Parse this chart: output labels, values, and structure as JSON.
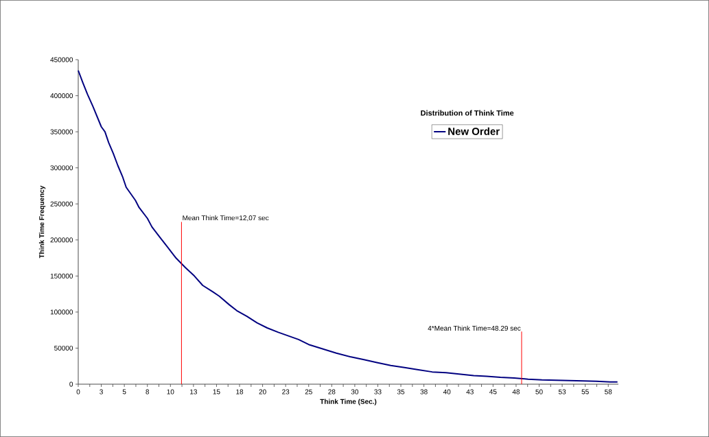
{
  "chart_data": {
    "type": "line",
    "legend_title": "Distribution of Think Time",
    "xlabel": "Think Time (Sec.)",
    "ylabel": "Think Time Frequency",
    "xlim": [
      0,
      58.6
    ],
    "ylim": [
      0,
      450000
    ],
    "xticks": [
      {
        "value": 0,
        "label": "0"
      },
      {
        "value": 1.25,
        "label": null
      },
      {
        "value": 2.5,
        "label": "3"
      },
      {
        "value": 3.75,
        "label": null
      },
      {
        "value": 5,
        "label": "5"
      },
      {
        "value": 6.25,
        "label": null
      },
      {
        "value": 7.5,
        "label": "8"
      },
      {
        "value": 8.75,
        "label": null
      },
      {
        "value": 10,
        "label": "10"
      },
      {
        "value": 11.25,
        "label": null
      },
      {
        "value": 12.5,
        "label": "13"
      },
      {
        "value": 13.75,
        "label": null
      },
      {
        "value": 15,
        "label": "15"
      },
      {
        "value": 16.25,
        "label": null
      },
      {
        "value": 17.5,
        "label": "18"
      },
      {
        "value": 18.75,
        "label": null
      },
      {
        "value": 20,
        "label": "20"
      },
      {
        "value": 21.25,
        "label": null
      },
      {
        "value": 22.5,
        "label": "23"
      },
      {
        "value": 23.75,
        "label": null
      },
      {
        "value": 25,
        "label": "25"
      },
      {
        "value": 26.25,
        "label": null
      },
      {
        "value": 27.5,
        "label": "28"
      },
      {
        "value": 28.75,
        "label": null
      },
      {
        "value": 30,
        "label": "30"
      },
      {
        "value": 31.25,
        "label": null
      },
      {
        "value": 32.5,
        "label": "33"
      },
      {
        "value": 33.75,
        "label": null
      },
      {
        "value": 35,
        "label": "35"
      },
      {
        "value": 36.25,
        "label": null
      },
      {
        "value": 37.5,
        "label": "38"
      },
      {
        "value": 38.75,
        "label": null
      },
      {
        "value": 40,
        "label": "40"
      },
      {
        "value": 41.25,
        "label": null
      },
      {
        "value": 42.5,
        "label": "43"
      },
      {
        "value": 43.75,
        "label": null
      },
      {
        "value": 45,
        "label": "45"
      },
      {
        "value": 46.25,
        "label": null
      },
      {
        "value": 47.5,
        "label": "48"
      },
      {
        "value": 48.75,
        "label": null
      },
      {
        "value": 50,
        "label": "50"
      },
      {
        "value": 51.25,
        "label": null
      },
      {
        "value": 52.5,
        "label": "53"
      },
      {
        "value": 53.75,
        "label": null
      },
      {
        "value": 55,
        "label": "55"
      },
      {
        "value": 56.25,
        "label": null
      },
      {
        "value": 57.5,
        "label": "58"
      }
    ],
    "yticks": [
      0,
      50000,
      100000,
      150000,
      200000,
      250000,
      300000,
      350000,
      400000,
      450000
    ],
    "legend": "top right",
    "marker": "none",
    "line_style": "solid",
    "grid": false,
    "series": [
      {
        "name": "New Order",
        "color": "#000080",
        "x": [
          0,
          0.5,
          1.0,
          1.6,
          2.5,
          2.9,
          3.3,
          3.8,
          4.3,
          4.8,
          5.2,
          6.2,
          6.6,
          7.5,
          8,
          8.9,
          9.7,
          10.6,
          11.6,
          12.6,
          13.5,
          14.6,
          15.3,
          16.4,
          17.2,
          18.3,
          19.4,
          20.5,
          21.7,
          22.8,
          23.9,
          25,
          26.5,
          28,
          29.5,
          31,
          32.4,
          33.9,
          35.4,
          36.9,
          38.4,
          39.9,
          41.4,
          42.9,
          44.3,
          45.8,
          47.3,
          48.8,
          50.3,
          51.8,
          53.3,
          54.8,
          56.2,
          57.7,
          58.5
        ],
        "values": [
          435000,
          418000,
          402000,
          385000,
          357000,
          350000,
          335000,
          320000,
          303000,
          288000,
          273000,
          255000,
          245000,
          230000,
          218000,
          203000,
          190000,
          175000,
          162000,
          150000,
          137000,
          128000,
          122000,
          110000,
          102000,
          94000,
          85000,
          78000,
          72000,
          67000,
          62000,
          55000,
          49000,
          43000,
          38000,
          34000,
          30000,
          26000,
          23000,
          20000,
          17000,
          16000,
          14000,
          12000,
          11000,
          9500,
          8500,
          7000,
          6000,
          5500,
          5000,
          4500,
          4000,
          3000,
          3000
        ]
      }
    ],
    "ref_lines": [
      {
        "axis": "x",
        "value": 11.2,
        "color": "#ff0000"
      },
      {
        "axis": "x",
        "value": 48.1,
        "color": "#ff0000"
      }
    ],
    "annotations": [
      {
        "text": "Mean Think Time=12,07 sec",
        "x": 11.2,
        "y": 225000
      },
      {
        "text": "4*Mean Think Time=48.29 sec",
        "x": 48.1,
        "y": 73000
      }
    ]
  }
}
